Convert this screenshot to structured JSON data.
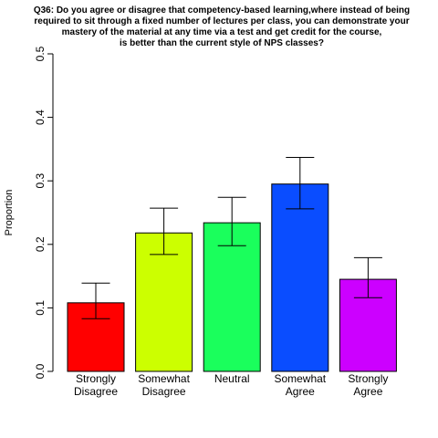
{
  "chart_data": {
    "type": "bar",
    "title_lines": [
      "Q36: Do you agree or disagree that competency-based learning,where instead of being",
      "required to sit through a fixed number of lectures per class, you can demonstrate your",
      "mastery of the material at any time via a test and get credit for the course,",
      "is better than the current style of NPS classes?"
    ],
    "ylabel": "Proportion",
    "xlabel": "",
    "ylim": [
      0,
      0.5
    ],
    "yticks": [
      0.0,
      0.1,
      0.2,
      0.3,
      0.4,
      0.5
    ],
    "ytick_labels": [
      "0.0",
      "0.1",
      "0.2",
      "0.3",
      "0.4",
      "0.5"
    ],
    "categories": [
      [
        "Strongly",
        "Disagree"
      ],
      [
        "Somewhat",
        "Disagree"
      ],
      [
        "Neutral"
      ],
      [
        "Somewhat",
        "Agree"
      ],
      [
        "Strongly",
        "Agree"
      ]
    ],
    "values": [
      0.108,
      0.218,
      0.234,
      0.295,
      0.145
    ],
    "error_low": [
      0.083,
      0.184,
      0.198,
      0.256,
      0.116
    ],
    "error_high": [
      0.139,
      0.257,
      0.274,
      0.337,
      0.179
    ],
    "colors": [
      "#ff0000",
      "#ccff00",
      "#1aff5c",
      "#0a4dff",
      "#cc00ff"
    ]
  }
}
